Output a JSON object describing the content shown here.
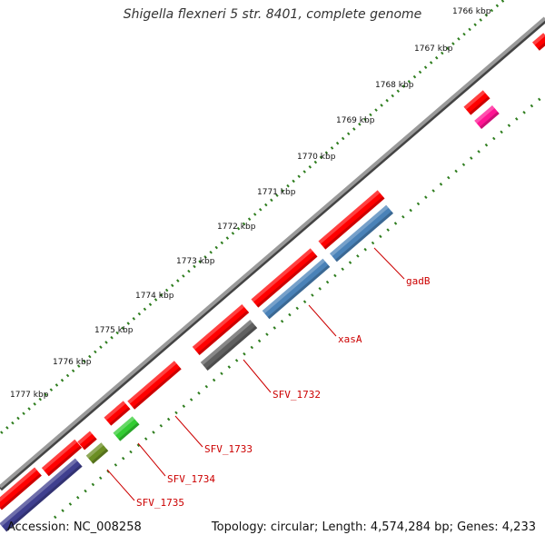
{
  "title": "Shigella flexneri 5 str. 8401, complete genome",
  "footer": {
    "accession": "Accession: NC_008258",
    "stats": "Topology: circular; Length: 4,574,284 bp; Genes: 4,233"
  },
  "scale": {
    "unit": "kbp",
    "ticks": [
      "1766 kbp",
      "1767 kbp",
      "1768 kbp",
      "1769 kbp",
      "1770 kbp",
      "1771 kbp",
      "1772 kbp",
      "1773 kbp",
      "1774 kbp",
      "1775 kbp",
      "1776 kbp",
      "1777 kbp"
    ]
  },
  "genes": [
    {
      "name": "gadB",
      "color": "#4a82b8"
    },
    {
      "name": "xasA",
      "color": "#4a82b8"
    },
    {
      "name": "SFV_1732",
      "color": "#606060"
    },
    {
      "name": "SFV_1733",
      "color": "#ff0000"
    },
    {
      "name": "SFV_1734",
      "color": "#33cc33"
    },
    {
      "name": "SFV_1735",
      "color": "#6b8e23"
    }
  ],
  "colors": {
    "forward_cds": "#ff0000",
    "backbone": "#888888",
    "tick": "#2e7d1e",
    "label": "#cc0000"
  }
}
